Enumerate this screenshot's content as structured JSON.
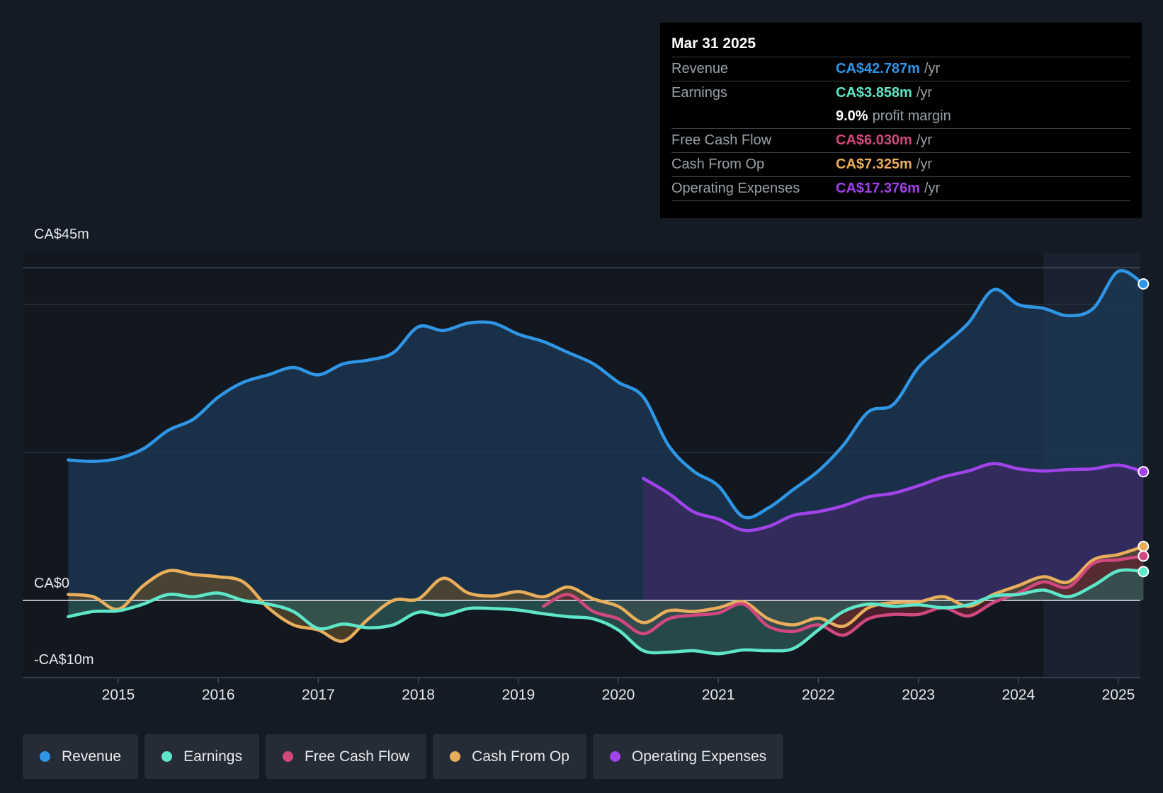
{
  "chart_data": {
    "type": "area",
    "title": "",
    "y_axis_labels": {
      "top": "CA$45m",
      "zero": "CA$0",
      "bottom": "-CA$10m"
    },
    "ylim": [
      -10,
      45
    ],
    "xlim": [
      2014.5,
      2025.25
    ],
    "x_ticks": [
      "2015",
      "2016",
      "2017",
      "2018",
      "2019",
      "2020",
      "2021",
      "2022",
      "2023",
      "2024",
      "2025"
    ],
    "highlight_from": 2024.25,
    "series": [
      {
        "name": "Revenue",
        "color": "#2f96e6",
        "fill": "#1c3a56",
        "points": [
          [
            2014.5,
            19
          ],
          [
            2014.75,
            18.8
          ],
          [
            2015,
            19.2
          ],
          [
            2015.25,
            20.5
          ],
          [
            2015.5,
            23
          ],
          [
            2015.75,
            24.5
          ],
          [
            2016,
            27.5
          ],
          [
            2016.25,
            29.5
          ],
          [
            2016.5,
            30.5
          ],
          [
            2016.75,
            31.5
          ],
          [
            2017,
            30.5
          ],
          [
            2017.25,
            32
          ],
          [
            2017.5,
            32.5
          ],
          [
            2017.75,
            33.5
          ],
          [
            2018,
            37
          ],
          [
            2018.25,
            36.5
          ],
          [
            2018.5,
            37.5
          ],
          [
            2018.75,
            37.5
          ],
          [
            2019,
            36
          ],
          [
            2019.25,
            35
          ],
          [
            2019.5,
            33.5
          ],
          [
            2019.75,
            32
          ],
          [
            2020,
            29.5
          ],
          [
            2020.25,
            27.5
          ],
          [
            2020.5,
            21
          ],
          [
            2020.75,
            17.5
          ],
          [
            2021,
            15.5
          ],
          [
            2021.25,
            11.3
          ],
          [
            2021.5,
            12.5
          ],
          [
            2021.75,
            15
          ],
          [
            2022,
            17.5
          ],
          [
            2022.25,
            21
          ],
          [
            2022.5,
            25.5
          ],
          [
            2022.75,
            26.5
          ],
          [
            2023,
            31.5
          ],
          [
            2023.25,
            34.5
          ],
          [
            2023.5,
            37.5
          ],
          [
            2023.75,
            42
          ],
          [
            2024,
            40
          ],
          [
            2024.25,
            39.5
          ],
          [
            2024.5,
            38.5
          ],
          [
            2024.75,
            39.5
          ],
          [
            2025,
            44.5
          ],
          [
            2025.25,
            42.8
          ]
        ]
      },
      {
        "name": "Operating Expenses",
        "color": "#a043e8",
        "fill": "#3b2a63",
        "points": [
          [
            2020.25,
            16.5
          ],
          [
            2020.5,
            14.5
          ],
          [
            2020.75,
            12
          ],
          [
            2021,
            11
          ],
          [
            2021.25,
            9.5
          ],
          [
            2021.5,
            10
          ],
          [
            2021.75,
            11.5
          ],
          [
            2022,
            12
          ],
          [
            2022.25,
            12.8
          ],
          [
            2022.5,
            14
          ],
          [
            2022.75,
            14.5
          ],
          [
            2023,
            15.5
          ],
          [
            2023.25,
            16.7
          ],
          [
            2023.5,
            17.5
          ],
          [
            2023.75,
            18.5
          ],
          [
            2024,
            17.8
          ],
          [
            2024.25,
            17.5
          ],
          [
            2024.5,
            17.7
          ],
          [
            2024.75,
            17.8
          ],
          [
            2025,
            18.3
          ],
          [
            2025.25,
            17.4
          ]
        ]
      },
      {
        "name": "Cash From Op",
        "color": "#e8ae5c",
        "fill": "#5a4a2c",
        "points": [
          [
            2014.5,
            0.8
          ],
          [
            2014.75,
            0.5
          ],
          [
            2015,
            -1.2
          ],
          [
            2015.25,
            2
          ],
          [
            2015.5,
            4
          ],
          [
            2015.75,
            3.5
          ],
          [
            2016,
            3.2
          ],
          [
            2016.25,
            2.5
          ],
          [
            2016.5,
            -1
          ],
          [
            2016.75,
            -3.3
          ],
          [
            2017,
            -4
          ],
          [
            2017.25,
            -5.5
          ],
          [
            2017.5,
            -2.5
          ],
          [
            2017.75,
            0
          ],
          [
            2018,
            0.2
          ],
          [
            2018.25,
            3
          ],
          [
            2018.5,
            1
          ],
          [
            2018.75,
            0.6
          ],
          [
            2019,
            1.2
          ],
          [
            2019.25,
            0.5
          ],
          [
            2019.5,
            1.8
          ],
          [
            2019.75,
            0.2
          ],
          [
            2020,
            -0.8
          ],
          [
            2020.25,
            -3
          ],
          [
            2020.5,
            -1.4
          ],
          [
            2020.75,
            -1.5
          ],
          [
            2021,
            -1
          ],
          [
            2021.25,
            -0.2
          ],
          [
            2021.5,
            -2.5
          ],
          [
            2021.75,
            -3.3
          ],
          [
            2022,
            -2.4
          ],
          [
            2022.25,
            -3.5
          ],
          [
            2022.5,
            -1
          ],
          [
            2022.75,
            -0.3
          ],
          [
            2023,
            -0.2
          ],
          [
            2023.25,
            0.5
          ],
          [
            2023.5,
            -0.8
          ],
          [
            2023.75,
            0.8
          ],
          [
            2024,
            2
          ],
          [
            2024.25,
            3.2
          ],
          [
            2024.5,
            2.5
          ],
          [
            2024.75,
            5.5
          ],
          [
            2025,
            6.2
          ],
          [
            2025.25,
            7.3
          ]
        ]
      },
      {
        "name": "Free Cash Flow",
        "color": "#d1487f",
        "fill": "#5a2430",
        "points": [
          [
            2019.25,
            -0.8
          ],
          [
            2019.5,
            0.8
          ],
          [
            2019.75,
            -1.5
          ],
          [
            2020,
            -2.5
          ],
          [
            2020.25,
            -4.5
          ],
          [
            2020.5,
            -2.5
          ],
          [
            2020.75,
            -2
          ],
          [
            2021,
            -1.7
          ],
          [
            2021.25,
            -0.5
          ],
          [
            2021.5,
            -3.5
          ],
          [
            2021.75,
            -4.2
          ],
          [
            2022,
            -3.3
          ],
          [
            2022.25,
            -4.7
          ],
          [
            2022.5,
            -2.5
          ],
          [
            2022.75,
            -1.9
          ],
          [
            2023,
            -1.9
          ],
          [
            2023.25,
            -1
          ],
          [
            2023.5,
            -2.1
          ],
          [
            2023.75,
            -0.3
          ],
          [
            2024,
            1
          ],
          [
            2024.25,
            2.5
          ],
          [
            2024.5,
            1.8
          ],
          [
            2024.75,
            5
          ],
          [
            2025,
            5.5
          ],
          [
            2025.25,
            6
          ]
        ]
      },
      {
        "name": "Earnings",
        "color": "#5ee6c9",
        "fill": "#2c5a58",
        "points": [
          [
            2014.5,
            -2.2
          ],
          [
            2014.75,
            -1.5
          ],
          [
            2015,
            -1.4
          ],
          [
            2015.25,
            -0.5
          ],
          [
            2015.5,
            0.8
          ],
          [
            2015.75,
            0.5
          ],
          [
            2016,
            1
          ],
          [
            2016.25,
            0
          ],
          [
            2016.5,
            -0.5
          ],
          [
            2016.75,
            -1.5
          ],
          [
            2017,
            -3.8
          ],
          [
            2017.25,
            -3.2
          ],
          [
            2017.5,
            -3.7
          ],
          [
            2017.75,
            -3.3
          ],
          [
            2018,
            -1.6
          ],
          [
            2018.25,
            -2
          ],
          [
            2018.5,
            -1.1
          ],
          [
            2018.75,
            -1.1
          ],
          [
            2019,
            -1.3
          ],
          [
            2019.25,
            -1.8
          ],
          [
            2019.5,
            -2.2
          ],
          [
            2019.75,
            -2.5
          ],
          [
            2020,
            -4
          ],
          [
            2020.25,
            -6.8
          ],
          [
            2020.5,
            -7
          ],
          [
            2020.75,
            -6.8
          ],
          [
            2021,
            -7.2
          ],
          [
            2021.25,
            -6.7
          ],
          [
            2021.5,
            -6.8
          ],
          [
            2021.75,
            -6.5
          ],
          [
            2022,
            -4
          ],
          [
            2022.25,
            -1.5
          ],
          [
            2022.5,
            -0.5
          ],
          [
            2022.75,
            -0.8
          ],
          [
            2023,
            -0.6
          ],
          [
            2023.25,
            -1
          ],
          [
            2023.5,
            -0.6
          ],
          [
            2023.75,
            0.6
          ],
          [
            2024,
            0.8
          ],
          [
            2024.25,
            1.4
          ],
          [
            2024.5,
            0.5
          ],
          [
            2024.75,
            2
          ],
          [
            2025,
            4
          ],
          [
            2025.25,
            3.9
          ]
        ]
      }
    ]
  },
  "tooltip": {
    "date": "Mar 31 2025",
    "rows": [
      {
        "label": "Revenue",
        "value": "CA$42.787m",
        "unit": "/yr",
        "color": "#2f96e6"
      },
      {
        "label": "Earnings",
        "value": "CA$3.858m",
        "unit": "/yr",
        "color": "#5ee6c9"
      },
      {
        "label": "",
        "value": "9.0%",
        "unit": "profit margin",
        "color": "#ffffff"
      },
      {
        "label": "Free Cash Flow",
        "value": "CA$6.030m",
        "unit": "/yr",
        "color": "#d1487f"
      },
      {
        "label": "Cash From Op",
        "value": "CA$7.325m",
        "unit": "/yr",
        "color": "#e8ae5c"
      },
      {
        "label": "Operating Expenses",
        "value": "CA$17.376m",
        "unit": "/yr",
        "color": "#a043e8"
      }
    ]
  },
  "legend": [
    {
      "label": "Revenue",
      "color": "#2f96e6"
    },
    {
      "label": "Earnings",
      "color": "#5ee6c9"
    },
    {
      "label": "Free Cash Flow",
      "color": "#d1487f"
    },
    {
      "label": "Cash From Op",
      "color": "#e8ae5c"
    },
    {
      "label": "Operating Expenses",
      "color": "#a043e8"
    }
  ]
}
